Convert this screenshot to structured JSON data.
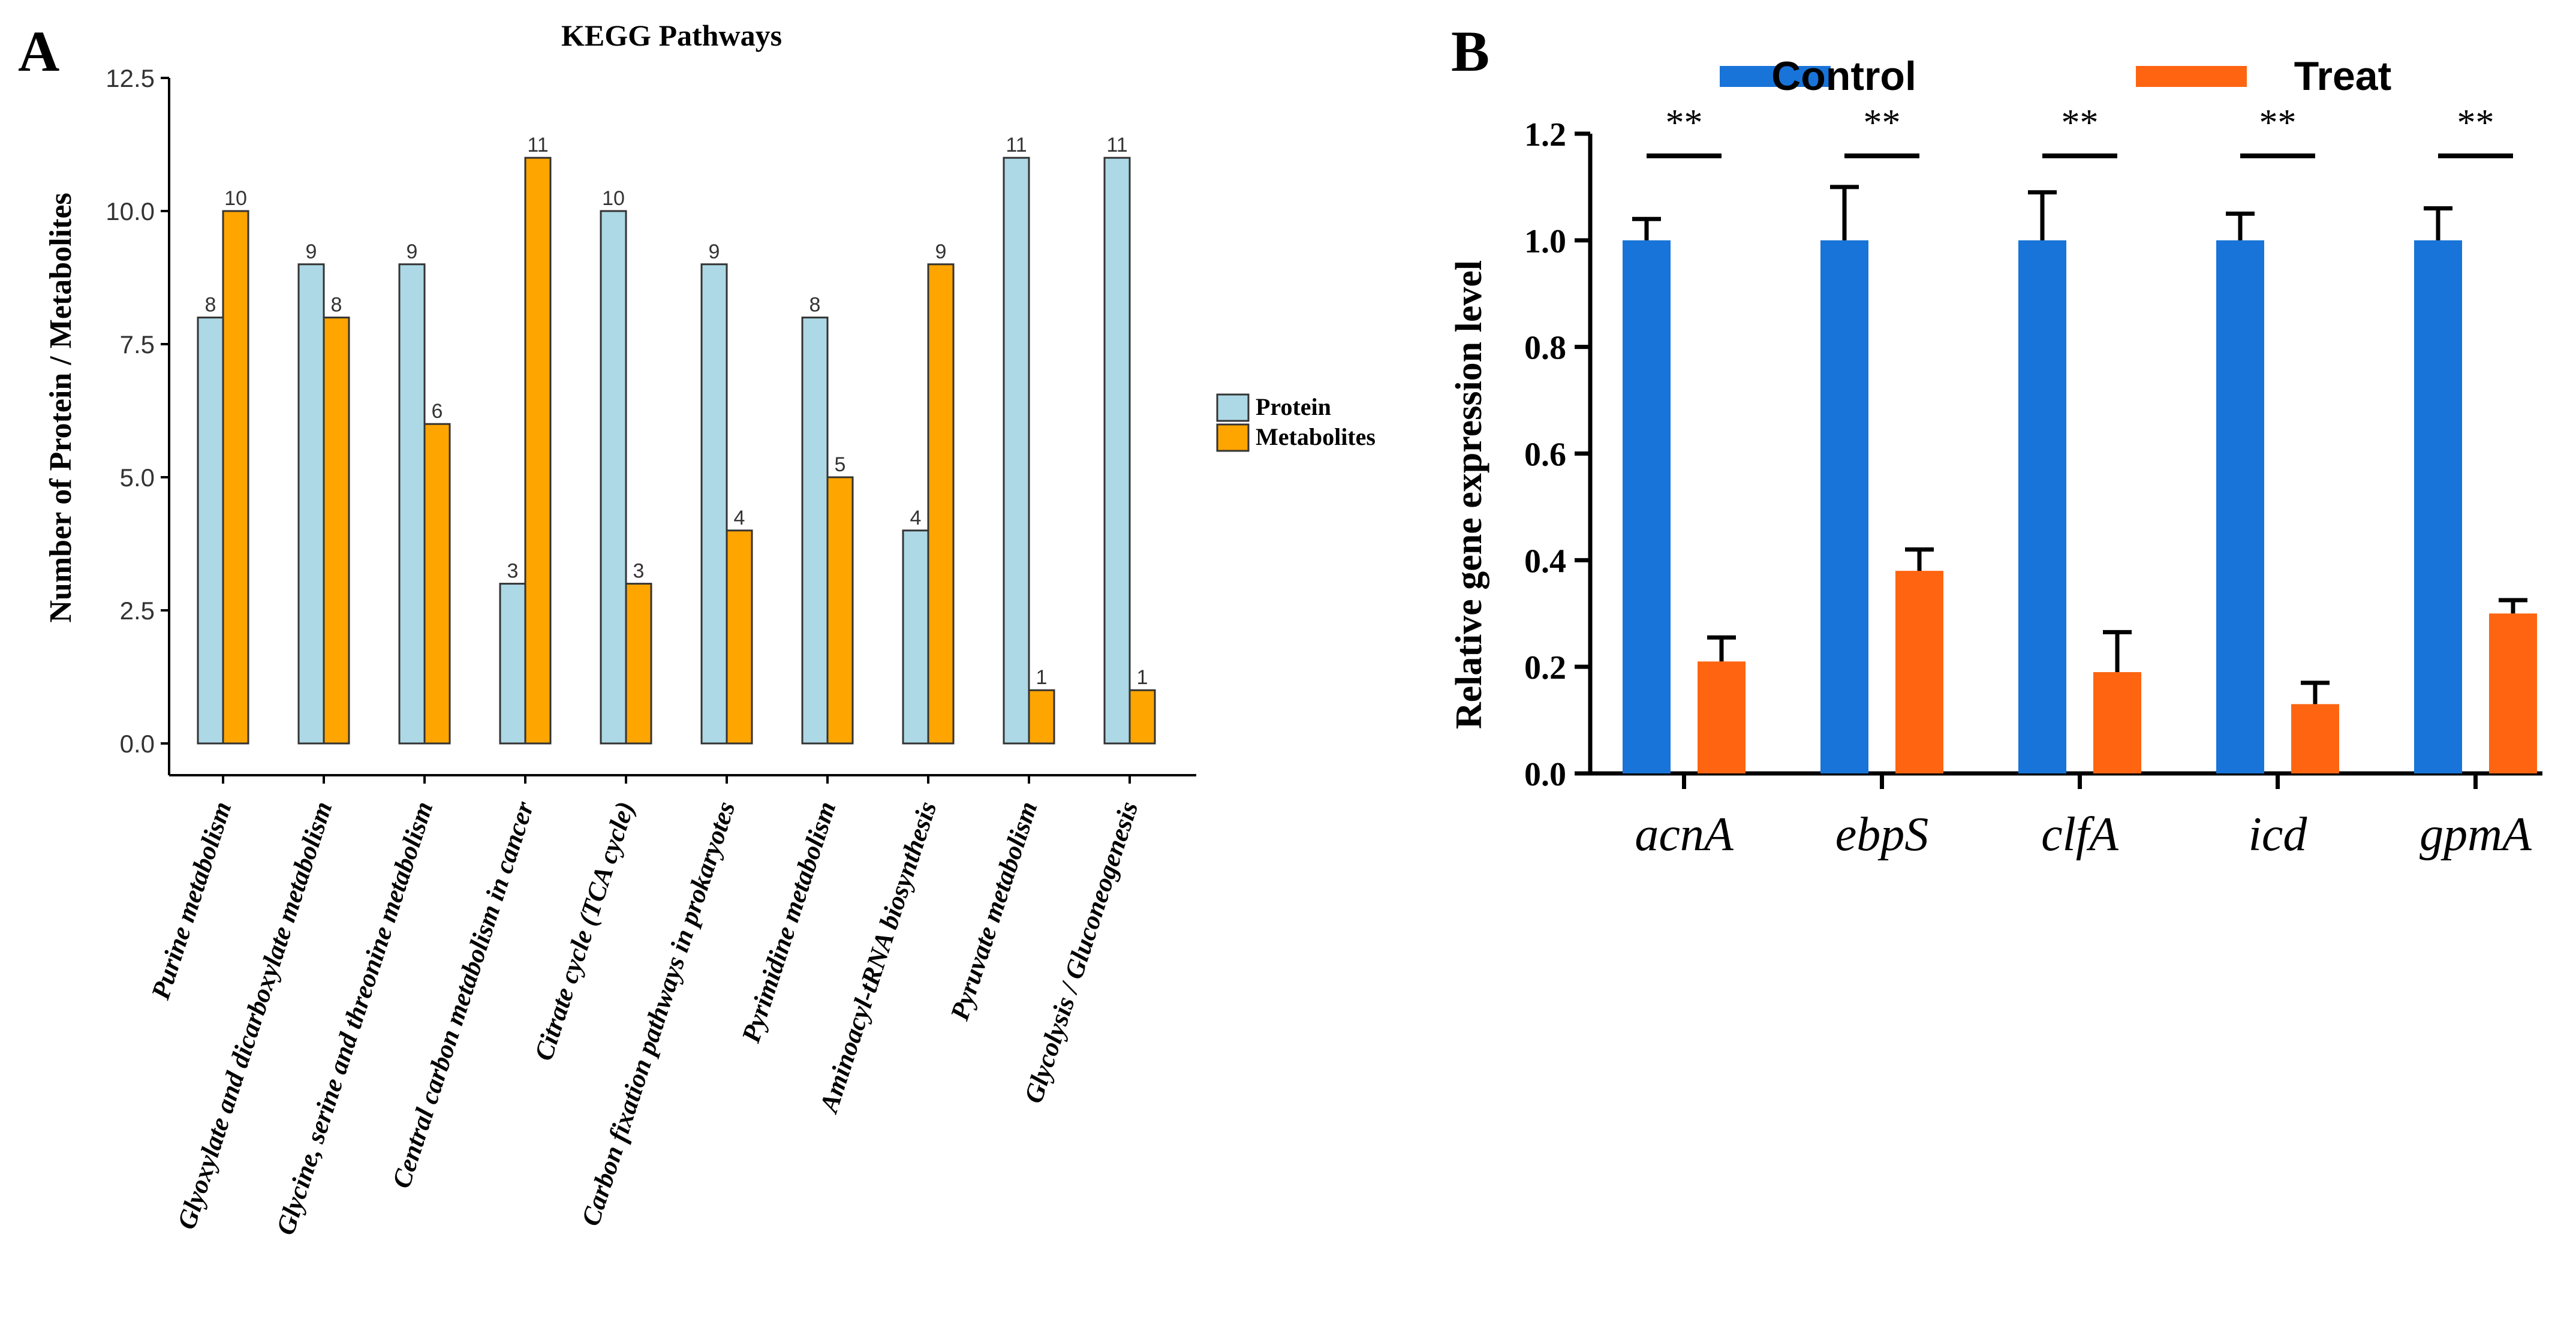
{
  "panel_labels": {
    "a": "A",
    "b": "B"
  },
  "colors": {
    "protein": "#ADD8E6",
    "metabolites": "#FFA500",
    "control": "#1874D8",
    "treat": "#FF6410",
    "axis": "#000000"
  },
  "chart_data": [
    {
      "type": "bar",
      "title": "KEGG Pathways",
      "xlabel": "",
      "ylabel": "Number of Protein / Metabolites",
      "ylim": [
        0,
        12.5
      ],
      "yticks": [
        "0.0",
        "2.5",
        "5.0",
        "7.5",
        "10.0",
        "12.5"
      ],
      "ytick_values": [
        0,
        2.5,
        5,
        7.5,
        10,
        12.5
      ],
      "legend_position": "right",
      "categories": [
        "Purine metabolism",
        "Glyoxylate and dicarboxylate metabolism",
        "Glycine, serine and threonine metabolism",
        "Central carbon metabolism in cancer",
        "Citrate cycle (TCA cycle)",
        "Carbon fixation pathways in prokaryotes",
        "Pyrimidine metabolism",
        "Aminoacyl-tRNA biosynthesis",
        "Pyruvate metabolism",
        "Glycolysis / Gluconeogenesis"
      ],
      "series": [
        {
          "name": "Protein",
          "values": [
            8,
            9,
            9,
            3,
            10,
            9,
            8,
            4,
            11,
            11
          ]
        },
        {
          "name": "Metabolites",
          "values": [
            10,
            8,
            6,
            11,
            3,
            4,
            5,
            9,
            1,
            1
          ]
        }
      ]
    },
    {
      "type": "bar",
      "title": "",
      "xlabel": "",
      "ylabel": "Relative gene expression level",
      "ylim": [
        0,
        1.2
      ],
      "yticks": [
        "0.0",
        "0.2",
        "0.4",
        "0.6",
        "0.8",
        "1.0",
        "1.2"
      ],
      "ytick_values": [
        0,
        0.2,
        0.4,
        0.6,
        0.8,
        1.0,
        1.2
      ],
      "legend_position": "top",
      "categories": [
        "acnA",
        "ebpS",
        "clfA",
        "icd",
        "gpmA"
      ],
      "series": [
        {
          "name": "Control",
          "values": [
            1.0,
            1.0,
            1.0,
            1.0,
            1.0
          ],
          "errors": [
            0.04,
            0.1,
            0.09,
            0.05,
            0.06
          ]
        },
        {
          "name": "Treat",
          "values": [
            0.21,
            0.38,
            0.19,
            0.13,
            0.3
          ],
          "errors": [
            0.045,
            0.04,
            0.075,
            0.04,
            0.025
          ]
        }
      ],
      "significance": [
        "**",
        "**",
        "**",
        "**",
        "**"
      ]
    }
  ]
}
